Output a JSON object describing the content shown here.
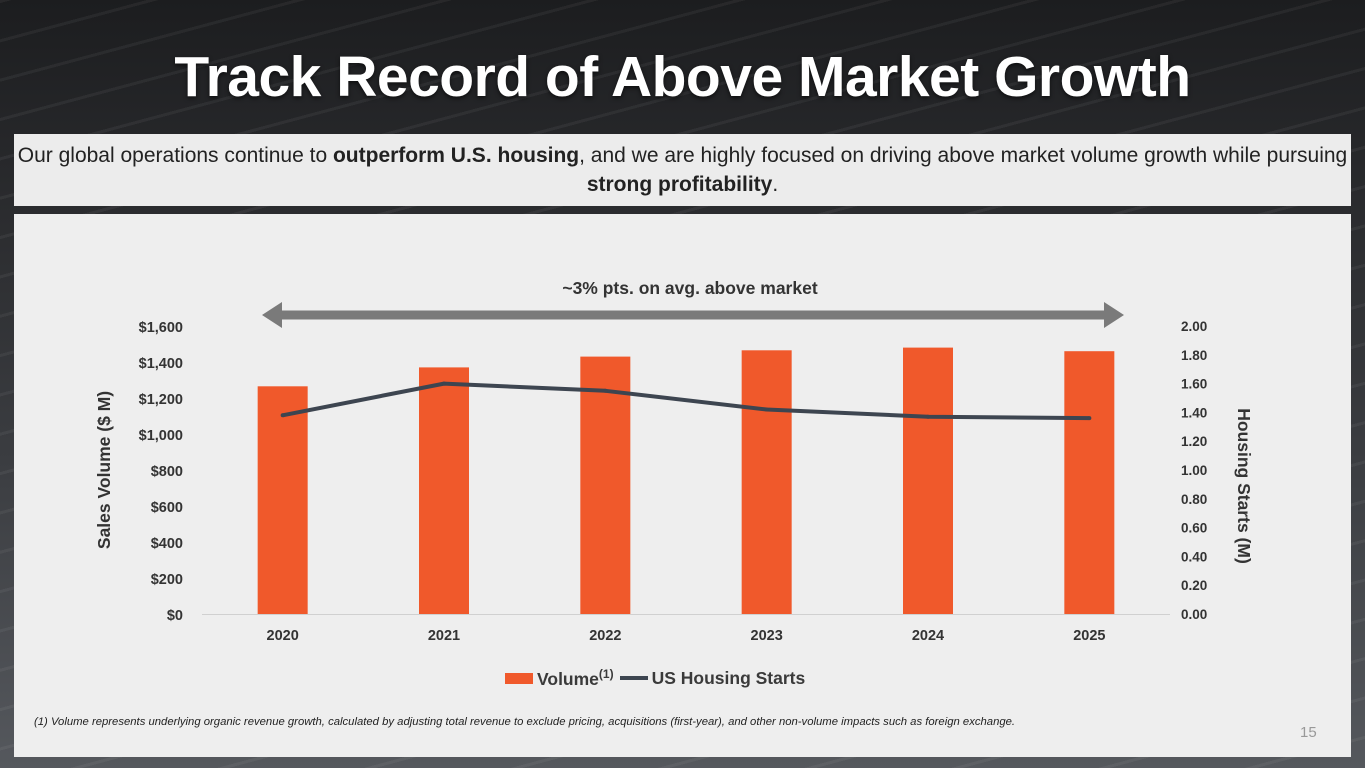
{
  "slide": {
    "title": "Track Record of Above Market Growth",
    "subtitle": {
      "part1": "Our global operations continue to ",
      "bold1": "outperform U.S. housing",
      "part2": ", and we are highly focused on driving above market volume growth while pursuing ",
      "bold2": "strong profitability",
      "part3": "."
    },
    "footnote": "(1) Volume represents underlying organic revenue growth, calculated by adjusting total revenue to exclude pricing, acquisitions (first-year), and other non-volume impacts such as foreign exchange.",
    "page_number": "15"
  },
  "chart_data": {
    "type": "bar",
    "annotation": "~3% pts. on avg. above market",
    "categories": [
      "2020",
      "2021",
      "2022",
      "2023",
      "2024",
      "2025"
    ],
    "series": [
      {
        "name": "Volume",
        "name_superscript": "(1)",
        "type": "bar",
        "axis": "left",
        "color": "#f0592b",
        "values": [
          1265,
          1370,
          1430,
          1465,
          1480,
          1460
        ]
      },
      {
        "name": "US Housing Starts",
        "type": "line",
        "axis": "right",
        "color": "#3d4550",
        "values": [
          1.38,
          1.6,
          1.55,
          1.42,
          1.37,
          1.36
        ]
      }
    ],
    "ylabel": "Sales Volume ($ M)",
    "y2label": "Housing Starts (M)",
    "ylim": [
      0,
      1600
    ],
    "y2lim": [
      0,
      2.0
    ],
    "yticks": [
      "$0",
      "$200",
      "$400",
      "$600",
      "$800",
      "$1,000",
      "$1,200",
      "$1,400",
      "$1,600"
    ],
    "y2ticks": [
      "0.00",
      "0.20",
      "0.40",
      "0.60",
      "0.80",
      "1.00",
      "1.20",
      "1.40",
      "1.60",
      "1.80",
      "2.00"
    ],
    "legend_position": "bottom",
    "grid": false
  }
}
